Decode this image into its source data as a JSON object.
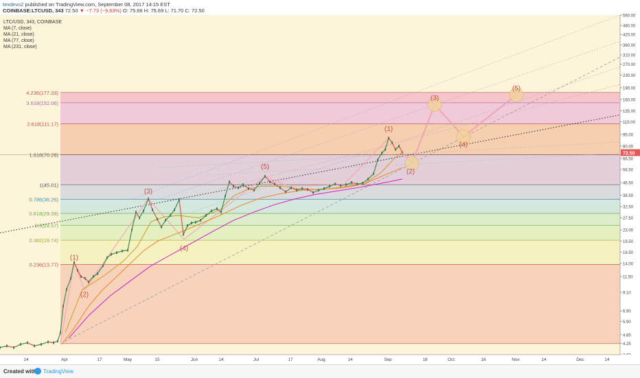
{
  "header": {
    "author": "texdevo2",
    "published": "published on TradingView.com, September 08, 2017 14:15 EST",
    "symbol_line": "COINBASE:LTCUSD, 343",
    "close_label": "72.50",
    "change": "−7.73 (−9.63%)",
    "ohlc": "O: 75.66 H: 75.69 L: 71.70 C: 72.50"
  },
  "legend": {
    "title": "LTC/USD, 343, COINBASE",
    "ma": [
      "MA (7, close)",
      "MA (21, close)",
      "MA (77, close)",
      "MA (231, close)"
    ]
  },
  "footer": {
    "created": "Created with",
    "brand": "TradingView"
  },
  "colors": {
    "background": "#fdf5d9",
    "fib_line": "#e2a0a0",
    "price_red": "#e05a5a",
    "ma7": "#f1a7a7",
    "ma21": "#d4a12a",
    "ma77": "#f08a3a",
    "ma231": "#d430c8",
    "wave_path": "#f2a8b6"
  },
  "chart_data": {
    "type": "line",
    "y_scale": "log",
    "ylim": [
      3.6,
      560
    ],
    "y_ticks": [
      "560.00",
      "480.00",
      "420.00",
      "360.00",
      "310.00",
      "270.00",
      "230.00",
      "190.00",
      "160.00",
      "135.00",
      "115.00",
      "95.00",
      "80.00",
      "66.50",
      "56.50",
      "46.50",
      "38.50",
      "32.50",
      "27.50",
      "23.00",
      "19.50",
      "16.50",
      "14.00",
      "11.50",
      "9.10",
      "6.90",
      "5.90",
      "4.85",
      "4.25",
      "3.60"
    ],
    "x_ticks": [
      "14",
      "Apr",
      "17",
      "May",
      "15",
      "Jun",
      "14",
      "Jul",
      "17",
      "Aug",
      "14",
      "Sep",
      "18",
      "Oct",
      "16",
      "Nov",
      "14",
      "Dec",
      "14"
    ],
    "last_price_label": "72.50",
    "fib_levels": [
      {
        "label": "4.236(177.33)",
        "value": 177.33
      },
      {
        "label": "3.618(152.06)",
        "value": 152.06
      },
      {
        "label": "2.618(111.17)",
        "value": 111.17
      },
      {
        "label": "1.618(70.28)",
        "value": 70.28
      },
      {
        "label": "1(45.01)",
        "value": 45.01
      },
      {
        "label": "0.786(36.26)",
        "value": 36.26
      },
      {
        "label": "0.618(29.39)",
        "value": 29.39
      },
      {
        "label": "0.5(24.57)",
        "value": 24.57
      },
      {
        "label": "0.382(19.74)",
        "value": 19.74
      },
      {
        "label": "0.236(13.77)",
        "value": 13.77
      },
      {
        "label": "",
        "value": 4.25
      }
    ],
    "fib_bands": [
      {
        "from": 152.06,
        "to": 177.33,
        "color": "#f3bcc8"
      },
      {
        "from": 111.17,
        "to": 152.06,
        "color": "#eec2d8"
      },
      {
        "from": 70.28,
        "to": 111.17,
        "color": "#f5c7a8"
      },
      {
        "from": 45.01,
        "to": 70.28,
        "color": "#ddc8d8"
      },
      {
        "from": 36.26,
        "to": 45.01,
        "color": "#d5d5df"
      },
      {
        "from": 29.39,
        "to": 36.26,
        "color": "#cde5dd"
      },
      {
        "from": 24.57,
        "to": 29.39,
        "color": "#d5ebc6"
      },
      {
        "from": 19.74,
        "to": 24.57,
        "color": "#e1efbc"
      },
      {
        "from": 13.77,
        "to": 19.74,
        "color": "#f4f0bc"
      },
      {
        "from": 4.25,
        "to": 13.77,
        "color": "#f7cdb6"
      }
    ],
    "fib_label_colors": [
      "#c0504d",
      "#a95fb0",
      "#c0504d",
      "#555555",
      "#555555",
      "#3d8fb0",
      "#6aa84f",
      "#6aa84f",
      "#9fa82f",
      "#c0504d"
    ],
    "price_series": [
      {
        "t": 0,
        "v": 4.0
      },
      {
        "t": 10,
        "v": 4.1
      },
      {
        "t": 20,
        "v": 4.0
      },
      {
        "t": 30,
        "v": 4.2
      },
      {
        "t": 40,
        "v": 4.3
      },
      {
        "t": 50,
        "v": 4.1
      },
      {
        "t": 60,
        "v": 4.2
      },
      {
        "t": 70,
        "v": 4.35
      },
      {
        "t": 78,
        "v": 4.3
      },
      {
        "t": 84,
        "v": 4.4
      },
      {
        "t": 88,
        "v": 5.0
      },
      {
        "t": 92,
        "v": 7.4
      },
      {
        "t": 97,
        "v": 9.5
      },
      {
        "t": 103,
        "v": 11.2
      },
      {
        "t": 108,
        "v": 14.2
      },
      {
        "t": 113,
        "v": 12.6
      },
      {
        "t": 118,
        "v": 11.5
      },
      {
        "t": 124,
        "v": 11.2
      },
      {
        "t": 129,
        "v": 10.6
      },
      {
        "t": 136,
        "v": 11.5
      },
      {
        "t": 142,
        "v": 12.0
      },
      {
        "t": 150,
        "v": 13.5
      },
      {
        "t": 156,
        "v": 15.2
      },
      {
        "t": 162,
        "v": 16.0
      },
      {
        "t": 170,
        "v": 16.4
      },
      {
        "t": 178,
        "v": 16.8
      },
      {
        "t": 186,
        "v": 17.0
      },
      {
        "t": 192,
        "v": 23.0
      },
      {
        "t": 198,
        "v": 30.0
      },
      {
        "t": 203,
        "v": 27.5
      },
      {
        "t": 209,
        "v": 30.5
      },
      {
        "t": 216,
        "v": 36.5
      },
      {
        "t": 222,
        "v": 31.0
      },
      {
        "t": 229,
        "v": 27.0
      },
      {
        "t": 235,
        "v": 24.0
      },
      {
        "t": 241,
        "v": 26.5
      },
      {
        "t": 248,
        "v": 28.5
      },
      {
        "t": 254,
        "v": 31.0
      },
      {
        "t": 261,
        "v": 36.0
      },
      {
        "t": 267,
        "v": 21.5
      },
      {
        "t": 273,
        "v": 24.5
      },
      {
        "t": 279,
        "v": 25.5
      },
      {
        "t": 285,
        "v": 25.8
      },
      {
        "t": 292,
        "v": 26.5
      },
      {
        "t": 300,
        "v": 28.5
      },
      {
        "t": 308,
        "v": 30.5
      },
      {
        "t": 316,
        "v": 31.5
      },
      {
        "t": 322,
        "v": 30.0
      },
      {
        "t": 328,
        "v": 38.0
      },
      {
        "t": 334,
        "v": 47.0
      },
      {
        "t": 340,
        "v": 44.0
      },
      {
        "t": 347,
        "v": 43.0
      },
      {
        "t": 354,
        "v": 45.0
      },
      {
        "t": 362,
        "v": 42.5
      },
      {
        "t": 370,
        "v": 41.5
      },
      {
        "t": 378,
        "v": 46.0
      },
      {
        "t": 386,
        "v": 51.0
      },
      {
        "t": 393,
        "v": 47.0
      },
      {
        "t": 400,
        "v": 45.5
      },
      {
        "t": 408,
        "v": 43.0
      },
      {
        "t": 416,
        "v": 40.5
      },
      {
        "t": 424,
        "v": 43.0
      },
      {
        "t": 432,
        "v": 41.5
      },
      {
        "t": 440,
        "v": 42.5
      },
      {
        "t": 448,
        "v": 42.0
      },
      {
        "t": 456,
        "v": 40.0
      },
      {
        "t": 464,
        "v": 41.5
      },
      {
        "t": 472,
        "v": 42.5
      },
      {
        "t": 480,
        "v": 44.0
      },
      {
        "t": 488,
        "v": 45.5
      },
      {
        "t": 496,
        "v": 44.5
      },
      {
        "t": 504,
        "v": 45.0
      },
      {
        "t": 512,
        "v": 46.5
      },
      {
        "t": 520,
        "v": 45.5
      },
      {
        "t": 528,
        "v": 46.0
      },
      {
        "t": 536,
        "v": 49.0
      },
      {
        "t": 544,
        "v": 53.0
      },
      {
        "t": 550,
        "v": 65.0
      },
      {
        "t": 556,
        "v": 72.0
      },
      {
        "t": 561,
        "v": 76.0
      },
      {
        "t": 566,
        "v": 90.0
      },
      {
        "t": 571,
        "v": 84.0
      },
      {
        "t": 576,
        "v": 76.0
      },
      {
        "t": 581,
        "v": 80.0
      },
      {
        "t": 586,
        "v": 72.5
      }
    ],
    "ma_series": [
      {
        "name": "MA (21, close)",
        "color": "#d4a12a",
        "points": [
          [
            95,
            5.0
          ],
          [
            120,
            9.5
          ],
          [
            150,
            11.5
          ],
          [
            180,
            14.5
          ],
          [
            200,
            18
          ],
          [
            220,
            26
          ],
          [
            240,
            28
          ],
          [
            260,
            28.5
          ],
          [
            290,
            27.5
          ],
          [
            320,
            31
          ],
          [
            340,
            38
          ],
          [
            360,
            42
          ],
          [
            380,
            44
          ],
          [
            410,
            44
          ],
          [
            440,
            42
          ],
          [
            470,
            42
          ],
          [
            500,
            43.5
          ],
          [
            530,
            45.5
          ],
          [
            555,
            54
          ],
          [
            575,
            67
          ],
          [
            586,
            73
          ]
        ]
      },
      {
        "name": "MA (77, close)",
        "color": "#f08a3a",
        "points": [
          [
            90,
            4.2
          ],
          [
            110,
            5.5
          ],
          [
            130,
            7.5
          ],
          [
            150,
            9.5
          ],
          [
            170,
            11.5
          ],
          [
            190,
            14
          ],
          [
            210,
            17
          ],
          [
            230,
            19.5
          ],
          [
            260,
            22
          ],
          [
            290,
            25
          ],
          [
            320,
            28.5
          ],
          [
            350,
            33
          ],
          [
            380,
            37
          ],
          [
            410,
            39.5
          ],
          [
            440,
            41.5
          ],
          [
            470,
            42
          ],
          [
            500,
            43
          ],
          [
            530,
            45.5
          ],
          [
            560,
            52
          ],
          [
            586,
            58
          ]
        ]
      },
      {
        "name": "MA (231, close)",
        "color": "#d430c8",
        "points": [
          [
            100,
            4.6
          ],
          [
            130,
            6.5
          ],
          [
            160,
            8.6
          ],
          [
            190,
            10.8
          ],
          [
            220,
            13.5
          ],
          [
            250,
            16
          ],
          [
            280,
            19
          ],
          [
            310,
            22.5
          ],
          [
            340,
            26.5
          ],
          [
            370,
            30
          ],
          [
            400,
            33.5
          ],
          [
            430,
            36.5
          ],
          [
            460,
            39
          ],
          [
            490,
            41
          ],
          [
            520,
            43
          ],
          [
            550,
            45.5
          ],
          [
            586,
            49
          ]
        ]
      }
    ],
    "wave_labels": [
      {
        "text": "(1)",
        "t": 108,
        "v": 14.8,
        "color": "#c0504d"
      },
      {
        "text": "(2)",
        "t": 123,
        "v": 8.5,
        "color": "#c0504d"
      },
      {
        "text": "(3)",
        "t": 216,
        "v": 39.5,
        "color": "#c0504d"
      },
      {
        "text": "(4)",
        "t": 268,
        "v": 17.0,
        "color": "#c0504d"
      },
      {
        "text": "(5)",
        "t": 386,
        "v": 57.0,
        "color": "#c0504d"
      },
      {
        "text": "(1)",
        "t": 566,
        "v": 100.0,
        "color": "#c0504d"
      },
      {
        "text": "(2)",
        "t": 598,
        "v": 53.0,
        "color": "#c0504d"
      },
      {
        "text": "(3)",
        "t": 633,
        "v": 158.0,
        "color": "#c0504d"
      },
      {
        "text": "(4)",
        "t": 675,
        "v": 79.0,
        "color": "#c0504d"
      },
      {
        "text": "(5)",
        "t": 752,
        "v": 182.0,
        "color": "#c0504d"
      }
    ],
    "projection_path": [
      [
        586,
        72.5
      ],
      [
        600,
        62.0
      ],
      [
        633,
        148.0
      ],
      [
        675,
        92.0
      ],
      [
        752,
        171.0
      ]
    ],
    "projection_circles": [
      [
        600,
        62.0
      ],
      [
        633,
        148.0
      ],
      [
        675,
        92.0
      ],
      [
        752,
        171.0
      ]
    ],
    "historic_wave_path": [
      [
        88,
        4.3
      ],
      [
        108,
        14.2
      ],
      [
        123,
        9.4
      ],
      [
        216,
        36.5
      ],
      [
        268,
        20.0
      ],
      [
        386,
        51.0
      ],
      [
        420,
        44
      ],
      [
        500,
        45
      ],
      [
        566,
        90
      ]
    ],
    "trend_lines": [
      {
        "from": [
          0,
          22.0
        ],
        "to": [
          903,
          127.0
        ],
        "style": "dotted",
        "color": "#333333"
      },
      {
        "from": [
          95,
          4.4
        ],
        "to": [
          903,
          300.0
        ],
        "style": "dashed",
        "color": "#999999"
      },
      {
        "from": [
          190,
          36.0
        ],
        "to": [
          903,
          560.0
        ],
        "style": "dotted",
        "color": "#b0b0c8"
      },
      {
        "from": [
          230,
          36.0
        ],
        "to": [
          903,
          380.0
        ],
        "style": "dotted",
        "color": "#b0b0c8"
      },
      {
        "from": [
          280,
          30.0
        ],
        "to": [
          903,
          260.0
        ],
        "style": "dotted",
        "color": "#b0b0c8"
      },
      {
        "from": [
          320,
          42.0
        ],
        "to": [
          903,
          200.0
        ],
        "style": "dotted",
        "color": "#c8a8a8"
      },
      {
        "from": [
          230,
          58.0
        ],
        "to": [
          903,
          85.0
        ],
        "style": "dotted",
        "color": "#b8b8b8"
      },
      {
        "from": [
          300,
          52.0
        ],
        "to": [
          903,
          72.0
        ],
        "style": "dotted",
        "color": "#b8b8b8"
      }
    ]
  }
}
